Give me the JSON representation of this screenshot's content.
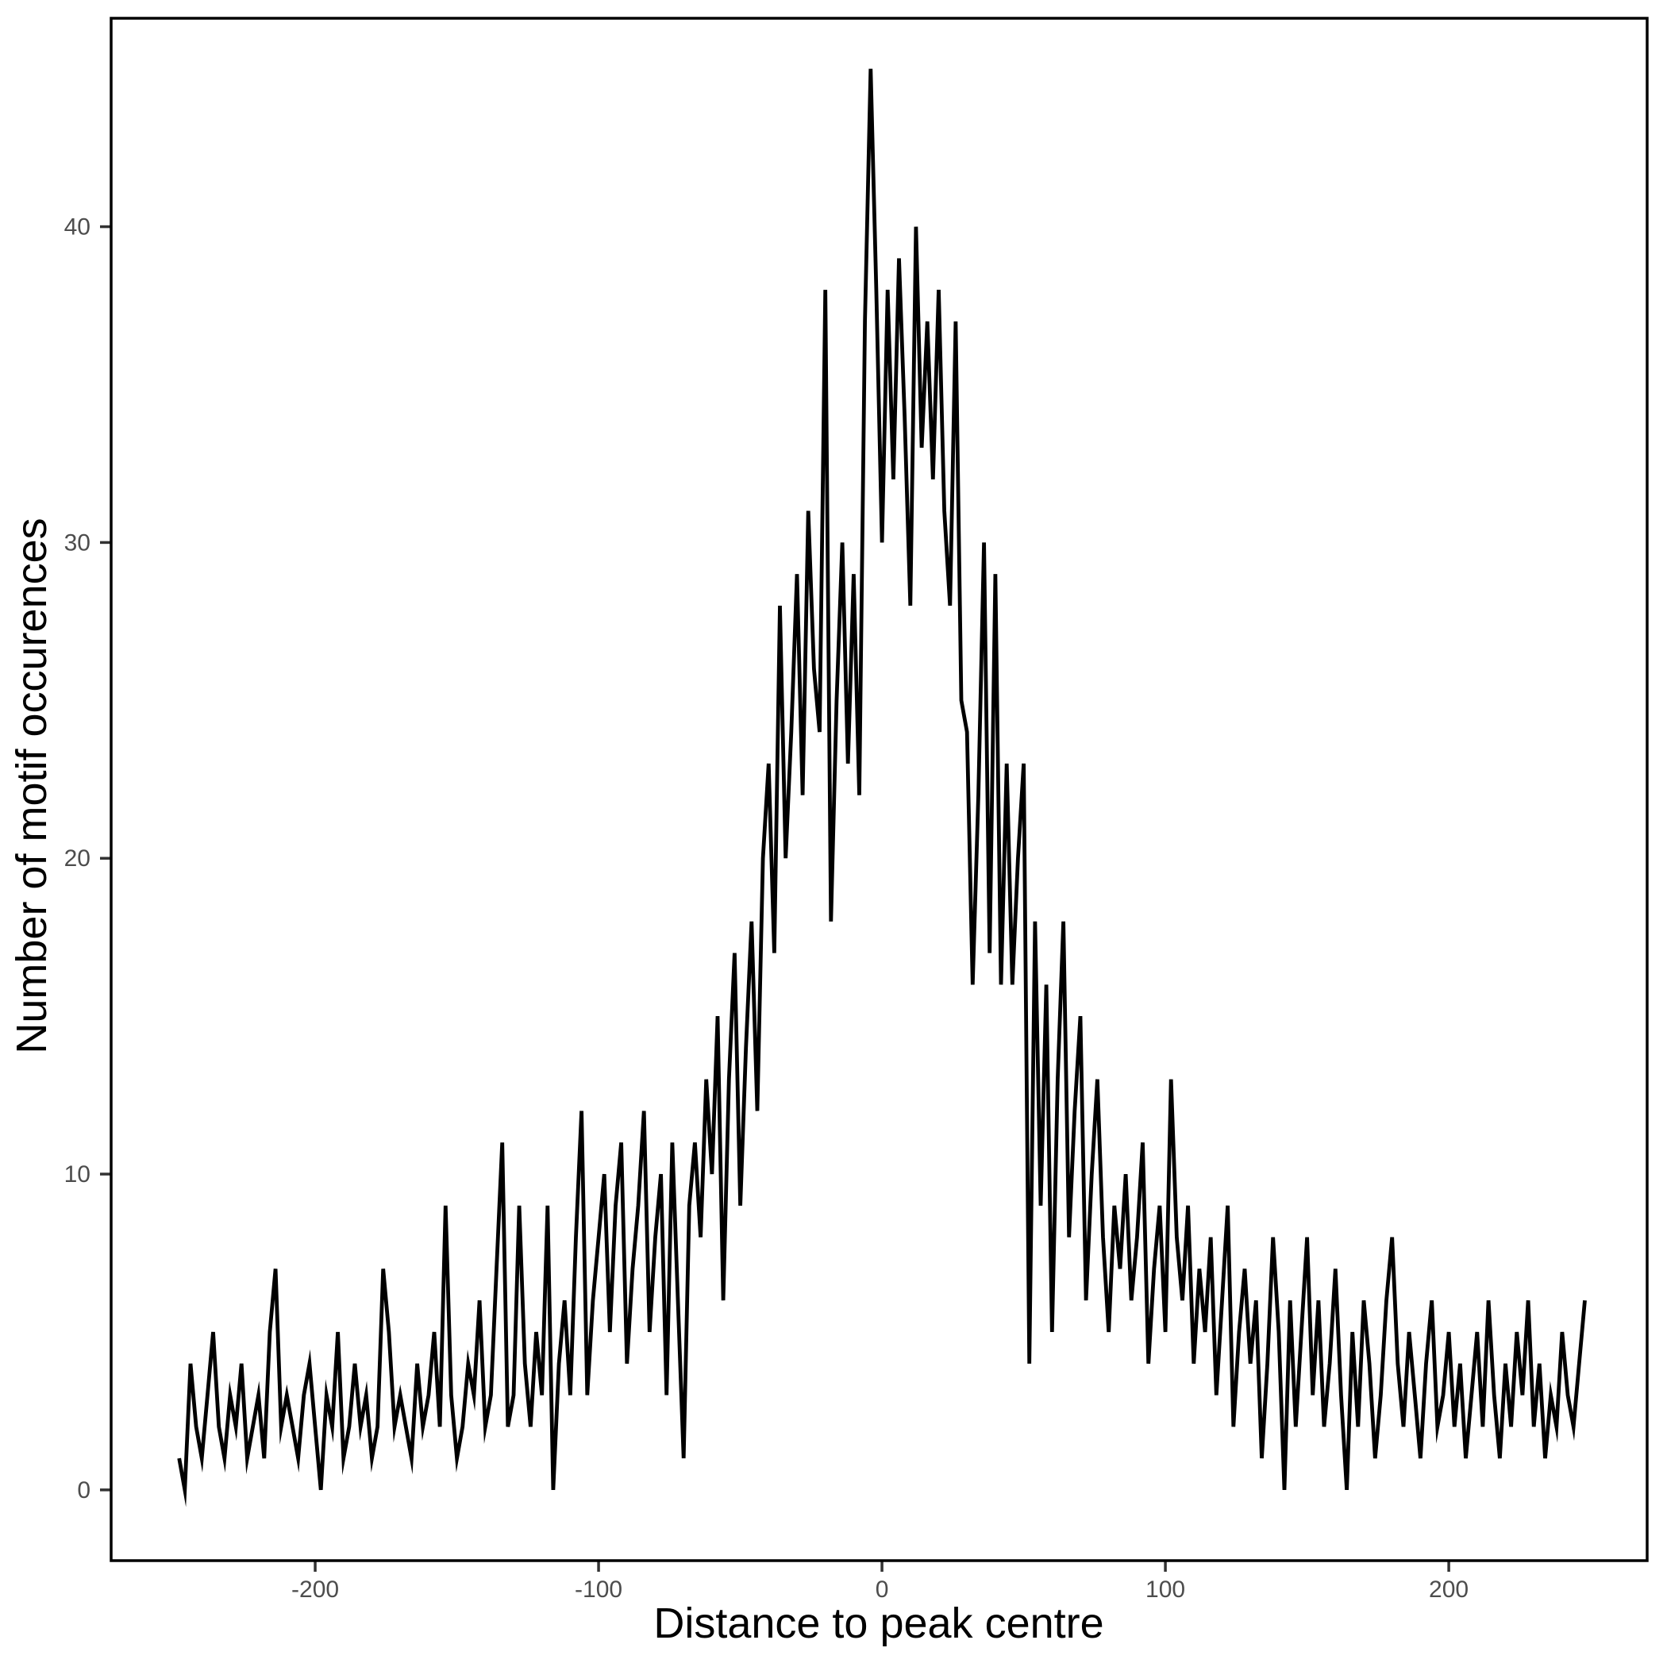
{
  "figure": {
    "background_color": "#ffffff",
    "panel_border_color": "#000000",
    "tick_color": "#333333",
    "tick_label_color": "#4d4d4d",
    "axis_title_color": "#000000"
  },
  "chart_data": {
    "type": "line",
    "title": "",
    "xlabel": "Distance to peak centre",
    "ylabel": "Number of motif occurences",
    "legend": "none",
    "grid": "off",
    "line_color": "#000000",
    "x_ticks": [
      -200,
      -100,
      0,
      100,
      200
    ],
    "y_ticks": [
      0,
      10,
      20,
      30,
      40
    ],
    "xlim": [
      -272,
      270
    ],
    "ylim": [
      -2.24,
      46.6
    ],
    "x_start": -248,
    "x_step": 2,
    "values": [
      1,
      0,
      4,
      2,
      1,
      3,
      5,
      2,
      1,
      3,
      2,
      4,
      1,
      2,
      3,
      1,
      5,
      7,
      2,
      3,
      2,
      1,
      3,
      4,
      2,
      0,
      3,
      2,
      5,
      1,
      2,
      4,
      2,
      3,
      1,
      2,
      7,
      5,
      2,
      3,
      2,
      1,
      4,
      2,
      3,
      5,
      2,
      9,
      3,
      1,
      2,
      4,
      3,
      6,
      2,
      3,
      7,
      11,
      2,
      3,
      9,
      4,
      2,
      5,
      3,
      9,
      0,
      4,
      6,
      3,
      8,
      12,
      3,
      6,
      8,
      10,
      5,
      9,
      11,
      4,
      7,
      9,
      12,
      5,
      8,
      10,
      3,
      11,
      6,
      1,
      9,
      11,
      8,
      13,
      10,
      15,
      6,
      13,
      17,
      9,
      14,
      18,
      12,
      20,
      23,
      17,
      28,
      20,
      24,
      29,
      22,
      31,
      26,
      24,
      38,
      18,
      25,
      30,
      23,
      29,
      22,
      37,
      45,
      38,
      30,
      38,
      32,
      39,
      34,
      28,
      40,
      33,
      37,
      32,
      38,
      31,
      28,
      37,
      25,
      24,
      16,
      22,
      30,
      17,
      29,
      16,
      23,
      16,
      20,
      23,
      4,
      18,
      9,
      16,
      5,
      13,
      18,
      8,
      12,
      15,
      6,
      10,
      13,
      8,
      5,
      9,
      7,
      10,
      6,
      8,
      11,
      4,
      7,
      9,
      5,
      13,
      8,
      6,
      9,
      4,
      7,
      5,
      8,
      3,
      6,
      9,
      2,
      5,
      7,
      4,
      6,
      1,
      4,
      8,
      5,
      0,
      6,
      2,
      5,
      8,
      3,
      6,
      2,
      4,
      7,
      3,
      0,
      5,
      2,
      6,
      4,
      1,
      3,
      6,
      8,
      4,
      2,
      5,
      3,
      1,
      4,
      6,
      2,
      3,
      5,
      2,
      4,
      1,
      3,
      5,
      2,
      6,
      3,
      1,
      4,
      2,
      5,
      3,
      6,
      2,
      4,
      1,
      3,
      2,
      5,
      3,
      2,
      4,
      6
    ]
  }
}
